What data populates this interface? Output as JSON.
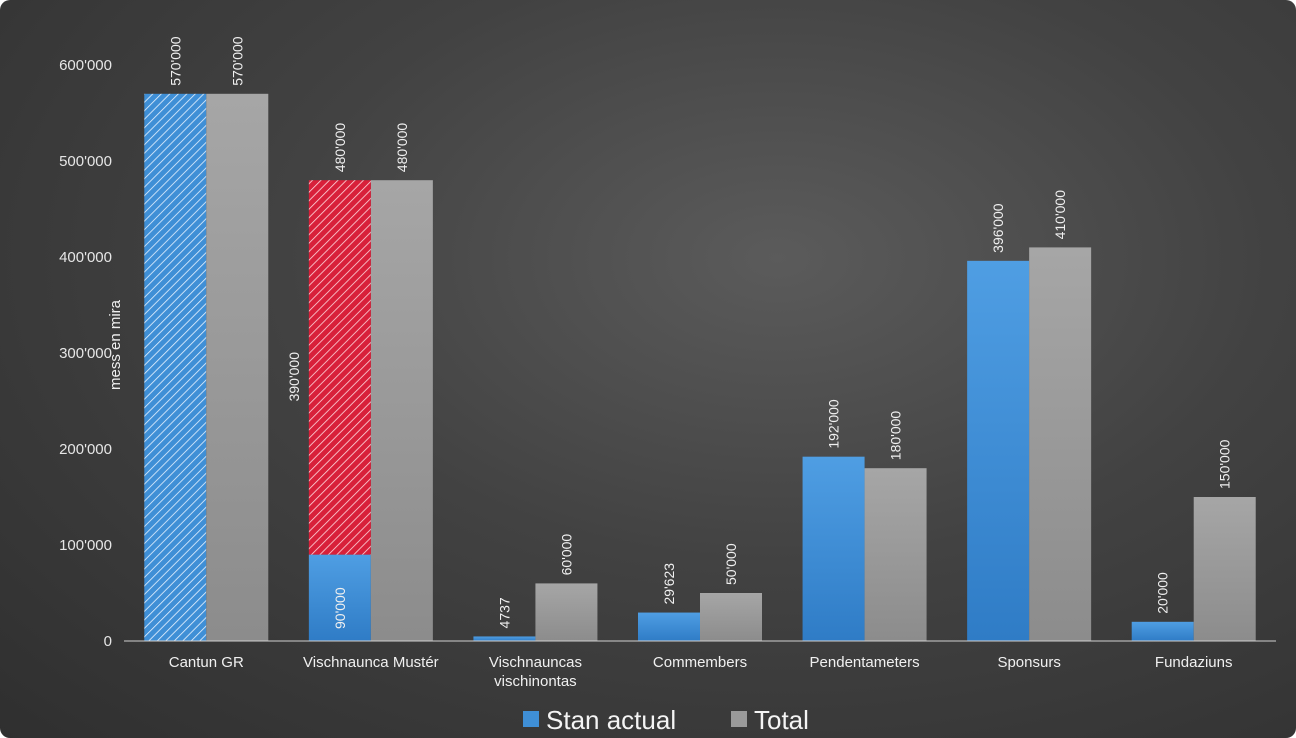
{
  "colors": {
    "stan_actual": "#3f8fd6",
    "total": "#9a9a9a",
    "hatch_blue": "#4a9be0",
    "hatch_red": "#e0283f",
    "axis_text": "#e6e6e6"
  },
  "chart_data": {
    "type": "bar",
    "title": "",
    "xlabel": "",
    "ylabel": "mess en mira",
    "ylim": [
      0,
      600000
    ],
    "yticks": [
      0,
      100000,
      200000,
      300000,
      400000,
      500000,
      600000
    ],
    "ytick_labels": [
      "0",
      "100'000",
      "200'000",
      "300'000",
      "400'000",
      "500'000",
      "600'000"
    ],
    "categories": [
      [
        "Cantun GR"
      ],
      [
        "Vischnaunca Mustér"
      ],
      [
        "Vischnauncas",
        "vischinontas"
      ],
      [
        "Commembers"
      ],
      [
        "Pendentameters"
      ],
      [
        "Sponsurs"
      ],
      [
        "Fundaziuns"
      ]
    ],
    "series": [
      {
        "name": "Stan actual",
        "values": [
          570000,
          90000,
          4737,
          29623,
          192000,
          396000,
          20000
        ],
        "labels": [
          "570'000",
          "90'000",
          "4737",
          "29'623",
          "192'000",
          "396'000",
          "20'000"
        ]
      },
      {
        "name": "Total",
        "values": [
          570000,
          480000,
          60000,
          50000,
          180000,
          410000,
          150000
        ],
        "labels": [
          "570'000",
          "480'000",
          "60'000",
          "50'000",
          "180'000",
          "410'000",
          "150'000"
        ]
      }
    ],
    "stacked_extra": [
      {
        "category_index": 1,
        "from": 90000,
        "to": 480000,
        "value": 390000,
        "label": "390'000",
        "top_label": "480'000",
        "style": "hatched-red"
      }
    ],
    "hatched_primary": [
      {
        "category_index": 0,
        "style": "hatched-blue"
      }
    ],
    "legend": {
      "placement": "bottom-center",
      "items": [
        "Stan actual",
        "Total"
      ]
    },
    "grid": false
  }
}
